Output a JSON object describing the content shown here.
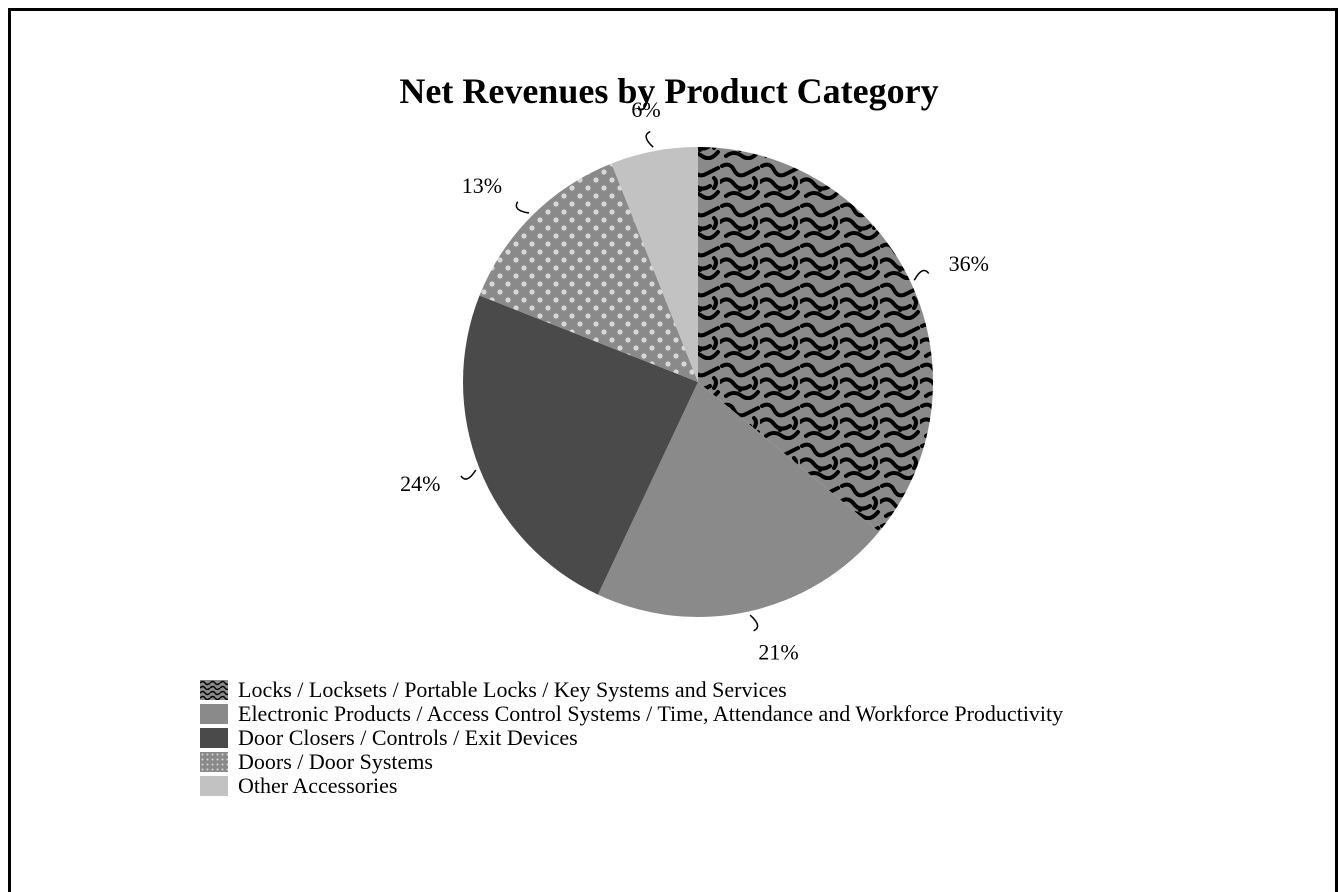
{
  "chart_data": {
    "type": "pie",
    "title": "Net Revenues by Product Category",
    "slices": [
      {
        "label": "Locks / Locksets / Portable Locks / Key Systems and Services",
        "value": 36,
        "display": "36%",
        "fill": "pattern-swirl",
        "color": "#8a8a8a"
      },
      {
        "label": "Electronic Products / Access Control Systems / Time, Attendance and Workforce Productivity",
        "value": 21,
        "display": "21%",
        "fill": "solid",
        "color": "#8a8a8a"
      },
      {
        "label": "Door Closers / Controls / Exit Devices",
        "value": 24,
        "display": "24%",
        "fill": "solid",
        "color": "#4a4a4a"
      },
      {
        "label": "Doors / Door Systems",
        "value": 13,
        "display": "13%",
        "fill": "pattern-dots",
        "color": "#8a8a8a"
      },
      {
        "label": "Other Accessories",
        "value": 6,
        "display": "6%",
        "fill": "solid",
        "color": "#c2c2c2"
      }
    ],
    "legend_position": "bottom-left"
  }
}
